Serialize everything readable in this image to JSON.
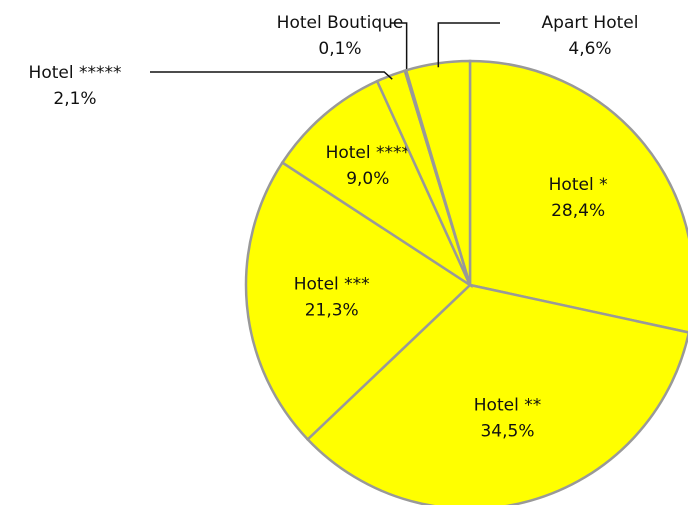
{
  "chart_data": {
    "type": "pie",
    "categories": [
      "Hotel *",
      "Hotel **",
      "Hotel ***",
      "Hotel ****",
      "Hotel *****",
      "Hotel Boutique",
      "Apart Hotel"
    ],
    "values": [
      28.4,
      34.5,
      21.3,
      9.0,
      2.1,
      0.1,
      4.6
    ],
    "value_labels": [
      "28,4%",
      "34,5%",
      "21,3%",
      "9,0%",
      "2,1%",
      "0,1%",
      "4,6%"
    ],
    "color": "#ffff00"
  }
}
